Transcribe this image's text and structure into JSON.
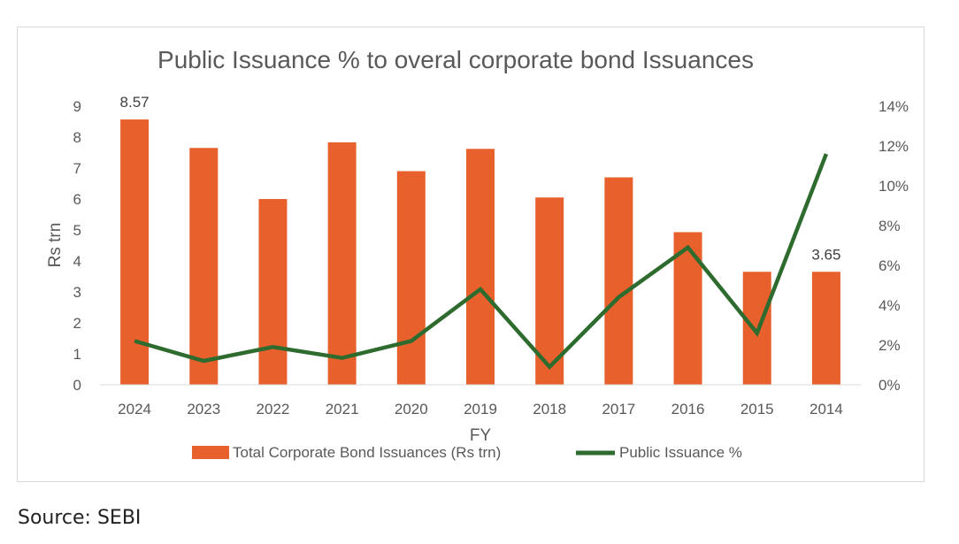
{
  "chart_data": {
    "type": "bar",
    "title": "Public Issuance % to overal corporate bond Issuances",
    "xlabel": "FY",
    "ylabel": "Rs trn",
    "categories": [
      "2024",
      "2023",
      "2022",
      "2021",
      "2020",
      "2019",
      "2018",
      "2017",
      "2016",
      "2015",
      "2014"
    ],
    "series": [
      {
        "name": "Total Corporate Bond Issuances (Rs trn)",
        "type": "bar",
        "axis": "left",
        "color": "#e8602c",
        "values": [
          8.57,
          7.65,
          6.0,
          7.83,
          6.9,
          7.62,
          6.05,
          6.7,
          4.93,
          3.65,
          3.65
        ],
        "data_labels": {
          "0": "8.57",
          "10": "3.65"
        }
      },
      {
        "name": "Public Issuance %",
        "type": "line",
        "axis": "right",
        "color": "#2e6b2e",
        "values": [
          2.2,
          1.2,
          1.9,
          1.35,
          2.2,
          4.8,
          0.9,
          4.4,
          6.9,
          2.6,
          11.6
        ]
      }
    ],
    "ylim": [
      0,
      9
    ],
    "y_ticks": [
      "0",
      "1",
      "2",
      "3",
      "4",
      "5",
      "6",
      "7",
      "8",
      "9"
    ],
    "y2lim": [
      0,
      14
    ],
    "y2_ticks": [
      "0%",
      "2%",
      "4%",
      "6%",
      "8%",
      "10%",
      "12%",
      "14%"
    ],
    "grid": false,
    "legend_position": "bottom"
  },
  "footer": {
    "source": "Source: SEBI"
  }
}
